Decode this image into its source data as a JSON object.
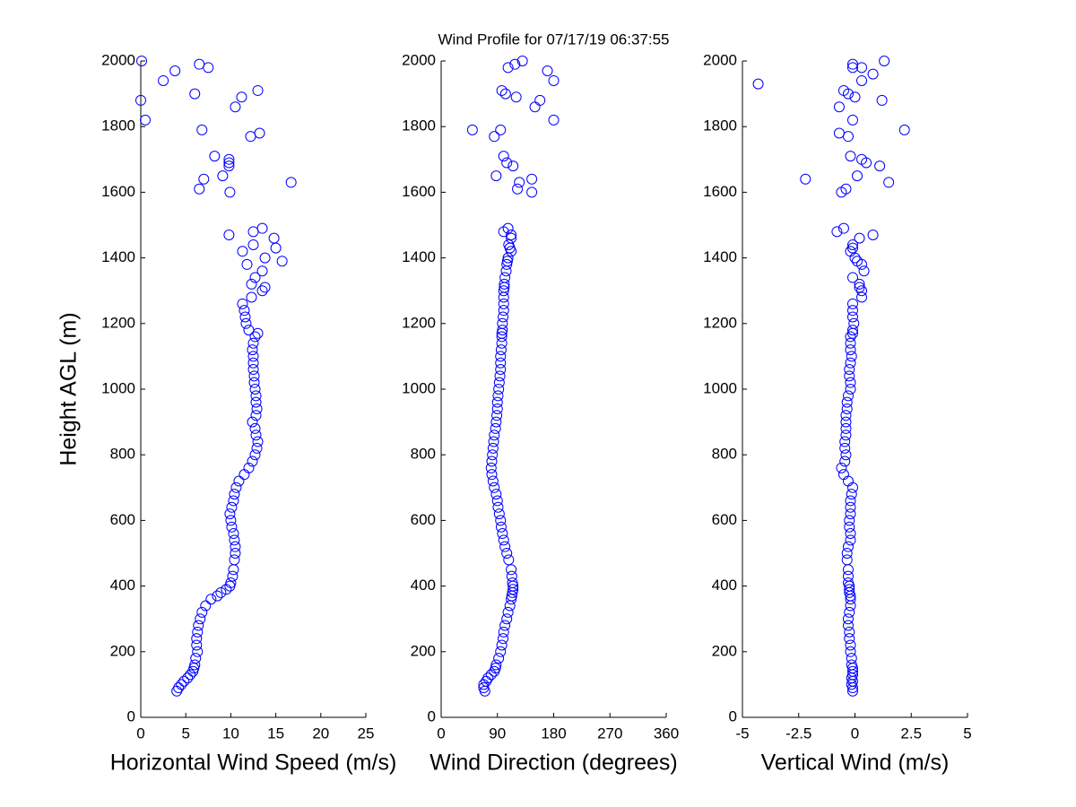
{
  "chart_data": [
    {
      "type": "scatter",
      "ylabel": "Height AGL (m)",
      "xlabel": "Horizontal Wind Speed (m/s)",
      "color": "#0000ff",
      "xlim": [
        0,
        25
      ],
      "xticks": [
        0,
        5,
        10,
        15,
        20,
        25
      ],
      "ylim": [
        0,
        2000
      ],
      "yticks": [
        0,
        200,
        400,
        600,
        800,
        1000,
        1200,
        1400,
        1600,
        1800,
        2000
      ],
      "x": [
        4,
        4.2,
        4.5,
        4.8,
        5.2,
        5.5,
        5.8,
        5.9,
        6,
        6.1,
        6.3,
        6.2,
        6.2,
        6.3,
        6.4,
        6.6,
        6.8,
        7.2,
        7.8,
        8.5,
        8.9,
        9.5,
        9.9,
        10,
        10.2,
        10.3,
        10.4,
        10.5,
        10.5,
        10.4,
        10.3,
        10.1,
        10,
        9.9,
        10.1,
        10.3,
        10.4,
        10.6,
        10.9,
        11.5,
        12,
        12.4,
        12.7,
        12.9,
        13,
        12.8,
        12.7,
        12.4,
        12.8,
        12.9,
        12.8,
        12.8,
        12.7,
        12.6,
        12.6,
        12.5,
        12.5,
        12.5,
        12.4,
        12.5,
        12.7,
        13,
        12,
        11.7,
        11.6,
        11.5,
        11.3,
        12.3,
        13.5,
        13.8,
        12.3,
        12.7,
        13.5,
        11.8,
        15.7,
        13.8,
        11.3,
        15,
        12.5,
        14.8,
        9.8,
        12.5,
        13.5,
        0.1,
        0,
        0.5,
        2.5,
        3.8,
        6.5,
        7.5,
        6,
        6.8,
        11.2,
        13,
        10.5,
        12.2,
        13.2,
        8.2,
        7,
        6.5,
        9.8,
        9.8,
        9.1,
        9.9,
        16.7,
        9.8
      ],
      "y": [
        80,
        90,
        100,
        110,
        120,
        130,
        140,
        150,
        160,
        180,
        200,
        220,
        240,
        260,
        280,
        300,
        320,
        340,
        360,
        370,
        380,
        390,
        400,
        410,
        430,
        450,
        480,
        500,
        520,
        540,
        560,
        580,
        600,
        620,
        640,
        660,
        680,
        700,
        720,
        740,
        760,
        780,
        800,
        820,
        840,
        860,
        880,
        900,
        920,
        940,
        960,
        980,
        1000,
        1020,
        1040,
        1060,
        1080,
        1100,
        1120,
        1140,
        1160,
        1170,
        1180,
        1200,
        1220,
        1240,
        1260,
        1280,
        1300,
        1310,
        1320,
        1340,
        1360,
        1380,
        1390,
        1400,
        1420,
        1430,
        1440,
        1460,
        1470,
        1480,
        1490,
        2000,
        1880,
        1820,
        1940,
        1970,
        1990,
        1980,
        1900,
        1790,
        1890,
        1910,
        1860,
        1770,
        1780,
        1710,
        1640,
        1610,
        1690,
        1680,
        1650,
        1600,
        1630,
        1700
      ]
    },
    {
      "type": "scatter",
      "title": "Wind Profile for  07/17/19 06:37:55",
      "xlabel": "Wind Direction (degrees)",
      "color": "#0000ff",
      "xlim": [
        0,
        360
      ],
      "xticks": [
        0,
        90,
        180,
        270,
        360
      ],
      "ylim": [
        0,
        2000
      ],
      "yticks": [
        0,
        200,
        400,
        600,
        800,
        1000,
        1200,
        1400,
        1600,
        1800,
        2000
      ],
      "x": [
        70,
        68,
        68,
        72,
        75,
        80,
        85,
        87,
        88,
        92,
        95,
        97,
        99,
        100,
        102,
        105,
        107,
        110,
        112,
        113,
        114,
        115,
        115,
        114,
        113,
        112,
        108,
        105,
        102,
        100,
        98,
        96,
        95,
        93,
        91,
        90,
        88,
        85,
        83,
        81,
        80,
        81,
        82,
        83,
        84,
        85,
        87,
        88,
        89,
        90,
        90,
        91,
        92,
        93,
        94,
        95,
        95,
        95,
        96,
        97,
        97,
        97,
        98,
        98,
        99,
        100,
        100,
        100,
        100,
        101,
        101,
        102,
        104,
        105,
        106,
        107,
        112,
        110,
        108,
        112,
        112,
        100,
        107,
        50,
        85,
        95,
        88,
        100,
        105,
        115,
        122,
        125,
        145,
        145,
        97,
        103,
        120,
        150,
        158,
        180,
        180,
        170,
        130,
        118,
        107
      ],
      "y": [
        80,
        90,
        100,
        110,
        120,
        130,
        140,
        150,
        160,
        180,
        200,
        220,
        240,
        260,
        280,
        300,
        320,
        340,
        360,
        370,
        380,
        390,
        400,
        410,
        430,
        450,
        480,
        500,
        520,
        540,
        560,
        580,
        600,
        620,
        640,
        660,
        680,
        700,
        720,
        740,
        760,
        780,
        800,
        820,
        840,
        860,
        880,
        900,
        920,
        940,
        960,
        980,
        1000,
        1020,
        1040,
        1060,
        1080,
        1100,
        1120,
        1140,
        1160,
        1170,
        1180,
        1200,
        1220,
        1240,
        1260,
        1280,
        1300,
        1310,
        1320,
        1340,
        1360,
        1380,
        1390,
        1400,
        1420,
        1430,
        1440,
        1460,
        1470,
        1480,
        1490,
        1790,
        1770,
        1790,
        1650,
        1710,
        1690,
        1680,
        1610,
        1630,
        1600,
        1640,
        1910,
        1900,
        1890,
        1860,
        1880,
        1820,
        1940,
        1970,
        2000,
        1990,
        1980
      ]
    },
    {
      "type": "scatter",
      "xlabel": "Vertical Wind (m/s)",
      "color": "#0000ff",
      "xlim": [
        -5,
        5
      ],
      "xticks": [
        -5,
        -2.5,
        0,
        2.5,
        5
      ],
      "ylim": [
        0,
        2000
      ],
      "yticks": [
        0,
        200,
        400,
        600,
        800,
        1000,
        1200,
        1400,
        1600,
        1800,
        2000
      ],
      "x": [
        -0.1,
        -0.1,
        -0.15,
        -0.1,
        -0.15,
        -0.1,
        -0.1,
        -0.1,
        -0.15,
        -0.15,
        -0.2,
        -0.2,
        -0.25,
        -0.25,
        -0.3,
        -0.3,
        -0.25,
        -0.2,
        -0.2,
        -0.2,
        -0.25,
        -0.25,
        -0.25,
        -0.3,
        -0.3,
        -0.3,
        -0.35,
        -0.35,
        -0.3,
        -0.2,
        -0.2,
        -0.25,
        -0.25,
        -0.2,
        -0.2,
        -0.2,
        -0.15,
        -0.1,
        -0.3,
        -0.5,
        -0.6,
        -0.45,
        -0.4,
        -0.45,
        -0.45,
        -0.4,
        -0.4,
        -0.4,
        -0.4,
        -0.35,
        -0.35,
        -0.3,
        -0.2,
        -0.2,
        -0.25,
        -0.25,
        -0.2,
        -0.15,
        -0.2,
        -0.2,
        -0.2,
        -0.1,
        -0.1,
        -0.05,
        -0.1,
        -0.1,
        -0.1,
        0.3,
        0.3,
        0.2,
        0.2,
        -0.1,
        0.4,
        0.3,
        0.1,
        0,
        -0.2,
        -0.1,
        -0.1,
        0.2,
        0.8,
        -0.8,
        -0.5,
        -4.3,
        -2.2,
        -0.6,
        -0.4,
        0.1,
        -0.1,
        -0.3,
        -0.7,
        -0.2,
        0.3,
        0.5,
        1.1,
        1.5,
        2.2,
        1.2,
        1.3,
        0.8,
        0.3,
        -0.1,
        -0.1,
        0.3,
        -0.5,
        -0.3,
        0,
        -0.7
      ],
      "y": [
        80,
        90,
        100,
        110,
        120,
        130,
        140,
        150,
        160,
        180,
        200,
        220,
        240,
        260,
        280,
        300,
        320,
        340,
        360,
        370,
        380,
        390,
        400,
        410,
        430,
        450,
        480,
        500,
        520,
        540,
        560,
        580,
        600,
        620,
        640,
        660,
        680,
        700,
        720,
        740,
        760,
        780,
        800,
        820,
        840,
        860,
        880,
        900,
        920,
        940,
        960,
        980,
        1000,
        1020,
        1040,
        1060,
        1080,
        1100,
        1120,
        1140,
        1160,
        1170,
        1180,
        1200,
        1220,
        1240,
        1260,
        1280,
        1300,
        1310,
        1320,
        1340,
        1360,
        1380,
        1390,
        1400,
        1420,
        1430,
        1440,
        1460,
        1470,
        1480,
        1490,
        1930,
        1640,
        1600,
        1610,
        1650,
        1820,
        1770,
        1780,
        1710,
        1700,
        1690,
        1680,
        1630,
        1790,
        1880,
        2000,
        1960,
        1980,
        1990,
        1980,
        1940,
        1910,
        1900,
        1890,
        1860
      ]
    }
  ]
}
